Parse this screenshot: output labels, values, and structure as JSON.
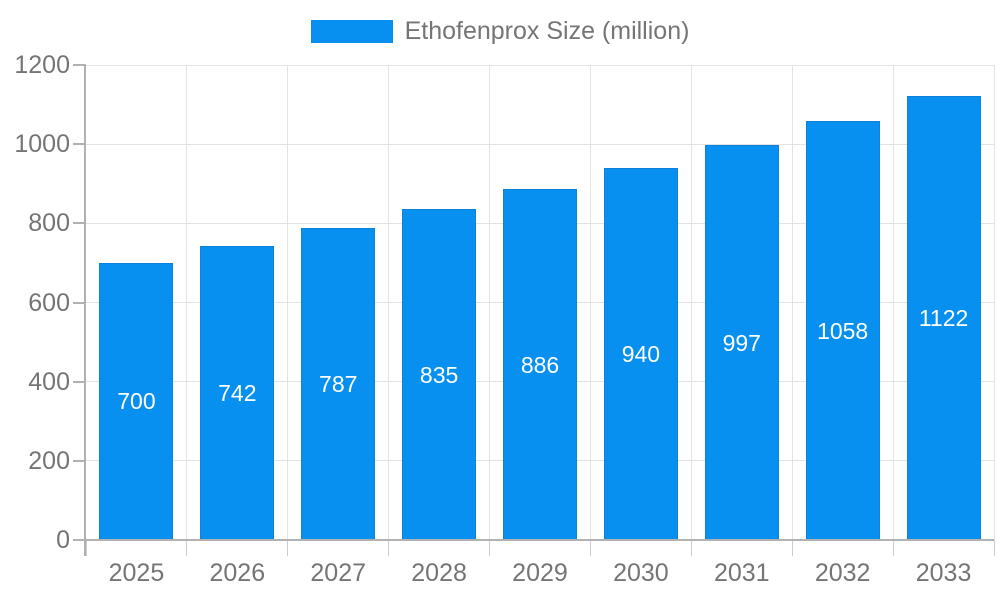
{
  "legend": {
    "items": [
      {
        "label": "Ethofenprox Size (million)",
        "color": "#0890f0"
      }
    ]
  },
  "chart_data": {
    "type": "bar",
    "title": "",
    "xlabel": "",
    "ylabel": "",
    "categories": [
      "2025",
      "2026",
      "2027",
      "2028",
      "2029",
      "2030",
      "2031",
      "2032",
      "2033"
    ],
    "series": [
      {
        "name": "Ethofenprox Size (million)",
        "values": [
          700,
          742,
          787,
          835,
          886,
          940,
          997,
          1058,
          1122
        ]
      }
    ],
    "ylim": [
      0,
      1200
    ],
    "yticks": [
      0,
      200,
      400,
      600,
      800,
      1000,
      1200
    ],
    "grid": true,
    "legend_position": "top",
    "value_labels": "inside-center"
  },
  "colors": {
    "bar": "#0890f0",
    "bar_border": "#0d82d8",
    "grid": "#e3e3e3",
    "axis": "#b1b1b1",
    "tick": "#cccccc",
    "label_text": "#757575",
    "value_label": "#ffffff",
    "background": "#ffffff"
  }
}
